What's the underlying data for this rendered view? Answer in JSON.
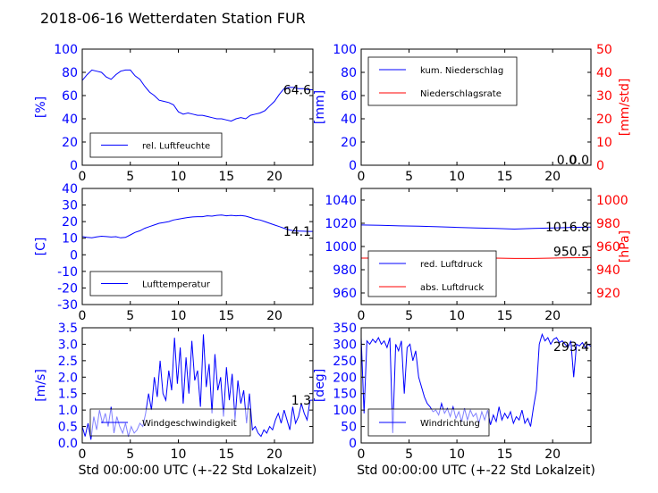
{
  "title": "2018-06-16 Wetterdaten Station FUR",
  "colors": {
    "left": "#0000ff",
    "right": "#ff0000"
  },
  "chart_data": [
    {
      "type": "line",
      "panel": "humidity",
      "ylabel": "[%]",
      "xlim": [
        0,
        24
      ],
      "ylim": [
        0,
        100
      ],
      "yticks": [
        0,
        20,
        40,
        60,
        80,
        100
      ],
      "xticks": [
        0,
        5,
        10,
        15,
        20
      ],
      "last_value": "64.6",
      "legend_placement": "lower-left",
      "series": [
        {
          "name": "rel. Luftfeuchte",
          "color": "#0000ff",
          "x": [
            0,
            0.5,
            1,
            1.5,
            2,
            2.5,
            3,
            3.5,
            4,
            4.5,
            5,
            5.5,
            6,
            6.5,
            7,
            7.5,
            8,
            8.5,
            9,
            9.5,
            10,
            10.5,
            11,
            11.5,
            12,
            12.5,
            13,
            13.5,
            14,
            14.5,
            15,
            15.5,
            16,
            16.5,
            17,
            17.5,
            18,
            18.5,
            19,
            19.5,
            20,
            20.5,
            21,
            21.5,
            22,
            22.5,
            23,
            23.5,
            24
          ],
          "y": [
            73,
            78,
            82,
            81,
            80,
            76,
            74,
            78,
            81,
            82,
            82,
            77,
            74,
            68,
            63,
            60,
            56,
            55,
            54,
            52,
            46,
            44,
            45,
            44,
            43,
            43,
            42,
            41,
            40,
            40,
            39,
            38,
            40,
            41,
            40,
            43,
            44,
            45,
            47,
            51,
            55,
            61,
            66,
            67,
            67,
            66,
            66,
            65,
            65
          ]
        }
      ]
    },
    {
      "type": "line",
      "panel": "precipitation",
      "ylabel": "[mm]",
      "ylabel_right": "[mm/std]",
      "xlim": [
        0,
        24
      ],
      "ylim": [
        0,
        100
      ],
      "ylim_right": [
        0,
        50
      ],
      "yticks": [
        0,
        20,
        40,
        60,
        80,
        100
      ],
      "yticks_right": [
        0,
        10,
        20,
        30,
        40,
        50
      ],
      "xticks": [
        0,
        5,
        10,
        15,
        20
      ],
      "last_value": "0.0",
      "last_value_2": "0.0",
      "legend_placement": "upper-left",
      "series": [
        {
          "name": "kum. Niederschlag",
          "color": "#0000ff",
          "axis": "left",
          "x": [
            0,
            24
          ],
          "y": [
            0,
            0
          ]
        },
        {
          "name": "Niederschlagsrate",
          "color": "#ff0000",
          "axis": "right",
          "x": [
            0,
            24
          ],
          "y": [
            0,
            0
          ]
        }
      ]
    },
    {
      "type": "line",
      "panel": "temperature",
      "ylabel": "[C]",
      "xlim": [
        0,
        24
      ],
      "ylim": [
        -30,
        40
      ],
      "yticks": [
        -30,
        -20,
        -10,
        0,
        10,
        20,
        30,
        40
      ],
      "xticks": [
        0,
        5,
        10,
        15,
        20
      ],
      "last_value": "14.1",
      "legend_placement": "lower-left",
      "series": [
        {
          "name": "Lufttemperatur",
          "color": "#0000ff",
          "x": [
            0,
            0.5,
            1,
            1.5,
            2,
            2.5,
            3,
            3.5,
            4,
            4.5,
            5,
            5.5,
            6,
            6.5,
            7,
            7.5,
            8,
            8.5,
            9,
            9.5,
            10,
            10.5,
            11,
            11.5,
            12,
            12.5,
            13,
            13.5,
            14,
            14.5,
            15,
            15.5,
            16,
            16.5,
            17,
            17.5,
            18,
            18.5,
            19,
            19.5,
            20,
            20.5,
            21,
            21.5,
            22,
            22.5,
            23,
            23.5,
            24
          ],
          "y": [
            11,
            10.5,
            10.3,
            10.8,
            11.2,
            11,
            10.7,
            10.9,
            10.2,
            10.5,
            12,
            13.5,
            14.5,
            16,
            17,
            18,
            19,
            19.5,
            20,
            21,
            21.5,
            22,
            22.5,
            22.8,
            23,
            23,
            23.5,
            23.3,
            23.8,
            24,
            23.5,
            23.8,
            23.5,
            23.7,
            23.3,
            22.5,
            21.5,
            21,
            20,
            19,
            18,
            17,
            16,
            15,
            14.5,
            14.3,
            14.2,
            14.1,
            14.1
          ]
        }
      ]
    },
    {
      "type": "line",
      "panel": "pressure",
      "ylabel": "",
      "ylabel_right": "[hPa]",
      "xlim": [
        0,
        24
      ],
      "ylim": [
        950,
        1050
      ],
      "ylim_right": [
        910,
        1010
      ],
      "yticks": [
        960,
        980,
        1000,
        1020,
        1040
      ],
      "yticks_right": [
        920,
        940,
        960,
        980,
        1000
      ],
      "xticks": [
        0,
        5,
        10,
        15,
        20
      ],
      "last_value": "1016.8",
      "last_value_2": "950.5",
      "legend_placement": "lower-left",
      "series": [
        {
          "name": "red. Luftdruck",
          "color": "#0000ff",
          "axis": "left",
          "x": [
            0,
            2,
            4,
            6,
            8,
            10,
            12,
            14,
            16,
            18,
            20,
            22,
            24
          ],
          "y": [
            1018.5,
            1018.2,
            1017.8,
            1017.5,
            1017.0,
            1016.5,
            1016.0,
            1015.5,
            1015.0,
            1015.5,
            1016.0,
            1016.5,
            1016.8
          ]
        },
        {
          "name": "abs. Luftdruck",
          "color": "#ff0000",
          "axis": "right",
          "x": [
            0,
            2,
            4,
            6,
            8,
            10,
            12,
            14,
            16,
            18,
            20,
            22,
            24
          ],
          "y": [
            950.0,
            950.0,
            950.3,
            950.8,
            950.8,
            950.5,
            950.3,
            950.0,
            949.7,
            949.7,
            950.0,
            950.3,
            950.5
          ]
        }
      ]
    },
    {
      "type": "line",
      "panel": "wind-speed",
      "ylabel": "[m/s]",
      "xlabel": "Std 00:00:00 UTC (+-22 Std Lokalzeit)",
      "xlim": [
        0,
        24
      ],
      "ylim": [
        0,
        3.5
      ],
      "yticks": [
        0.0,
        0.5,
        1.0,
        1.5,
        2.0,
        2.5,
        3.0,
        3.5
      ],
      "xticks": [
        0,
        5,
        10,
        15,
        20
      ],
      "last_value": "1.3",
      "legend_placement": "lower-center",
      "series": [
        {
          "name": "Windgeschwindigkeit",
          "color": "#0000ff",
          "x": [
            0,
            0.3,
            0.6,
            0.9,
            1.2,
            1.5,
            1.8,
            2.1,
            2.4,
            2.7,
            3,
            3.3,
            3.6,
            3.9,
            4.2,
            4.5,
            4.8,
            5.1,
            5.4,
            5.7,
            6,
            6.3,
            6.6,
            6.9,
            7.2,
            7.5,
            7.8,
            8.1,
            8.4,
            8.7,
            9,
            9.3,
            9.6,
            9.9,
            10.2,
            10.5,
            10.8,
            11.1,
            11.4,
            11.7,
            12,
            12.3,
            12.6,
            12.9,
            13.2,
            13.5,
            13.8,
            14.1,
            14.4,
            14.7,
            15,
            15.3,
            15.6,
            15.9,
            16.2,
            16.5,
            16.8,
            17.1,
            17.4,
            17.7,
            18,
            18.3,
            18.6,
            18.9,
            19.2,
            19.5,
            19.8,
            20.1,
            20.4,
            20.7,
            21,
            21.3,
            21.6,
            21.9,
            22.2,
            22.5,
            22.8,
            23.1,
            23.4,
            23.7,
            24
          ],
          "y": [
            0.5,
            0.2,
            0.6,
            0.1,
            0.8,
            0.4,
            1.0,
            0.6,
            0.9,
            0.5,
            1.1,
            0.3,
            0.8,
            0.5,
            0.3,
            0.6,
            0.2,
            0.5,
            0.3,
            0.4,
            0.6,
            0.5,
            0.9,
            1.5,
            1.0,
            2.0,
            1.4,
            2.5,
            1.5,
            1.3,
            2.2,
            1.6,
            3.2,
            1.8,
            2.9,
            1.2,
            2.6,
            1.5,
            3.1,
            1.9,
            2.2,
            1.1,
            3.3,
            1.7,
            2.4,
            0.9,
            2.7,
            1.6,
            2.0,
            0.8,
            2.3,
            1.3,
            2.1,
            0.7,
            1.9,
            1.2,
            1.6,
            0.6,
            1.5,
            0.4,
            0.5,
            0.3,
            0.2,
            0.4,
            0.3,
            0.5,
            0.4,
            0.7,
            0.9,
            0.6,
            1.0,
            0.7,
            0.4,
            1.1,
            0.6,
            0.8,
            1.2,
            0.9,
            0.7,
            1.3,
            1.3
          ]
        }
      ]
    },
    {
      "type": "line",
      "panel": "wind-direction",
      "ylabel": "[deg]",
      "xlabel": "Std 00:00:00 UTC (+-22 Std Lokalzeit)",
      "xlim": [
        0,
        24
      ],
      "ylim": [
        0,
        350
      ],
      "yticks": [
        0,
        50,
        100,
        150,
        200,
        250,
        300,
        350
      ],
      "xticks": [
        0,
        5,
        10,
        15,
        20
      ],
      "last_value": "293.4",
      "legend_placement": "lower-left",
      "series": [
        {
          "name": "Windrichtung",
          "color": "#0000ff",
          "x": [
            0,
            0.3,
            0.6,
            0.9,
            1.2,
            1.5,
            1.8,
            2.1,
            2.4,
            2.7,
            3,
            3.3,
            3.6,
            3.9,
            4.2,
            4.5,
            4.8,
            5.1,
            5.4,
            5.7,
            6,
            6.3,
            6.6,
            6.9,
            7.2,
            7.5,
            7.8,
            8.1,
            8.4,
            8.7,
            9,
            9.3,
            9.6,
            9.9,
            10.2,
            10.5,
            10.8,
            11.1,
            11.4,
            11.7,
            12,
            12.3,
            12.6,
            12.9,
            13.2,
            13.5,
            13.8,
            14.1,
            14.4,
            14.7,
            15,
            15.3,
            15.6,
            15.9,
            16.2,
            16.5,
            16.8,
            17.1,
            17.4,
            17.7,
            18,
            18.3,
            18.6,
            18.9,
            19.2,
            19.5,
            19.8,
            20.1,
            20.4,
            20.7,
            21,
            21.3,
            21.6,
            21.9,
            22.2,
            22.5,
            22.8,
            23.1,
            23.4,
            23.7,
            24
          ],
          "y": [
            320,
            90,
            310,
            300,
            315,
            305,
            320,
            300,
            310,
            290,
            320,
            30,
            300,
            280,
            310,
            150,
            290,
            300,
            250,
            280,
            200,
            170,
            140,
            120,
            110,
            95,
            100,
            85,
            120,
            90,
            105,
            80,
            110,
            75,
            95,
            65,
            105,
            70,
            100,
            80,
            90,
            60,
            95,
            70,
            100,
            55,
            85,
            65,
            110,
            70,
            90,
            75,
            95,
            60,
            80,
            70,
            100,
            60,
            75,
            50,
            110,
            160,
            300,
            330,
            310,
            320,
            300,
            315,
            320,
            305,
            310,
            300,
            290,
            310,
            200,
            300,
            295,
            305,
            290,
            300,
            293
          ]
        }
      ]
    }
  ]
}
